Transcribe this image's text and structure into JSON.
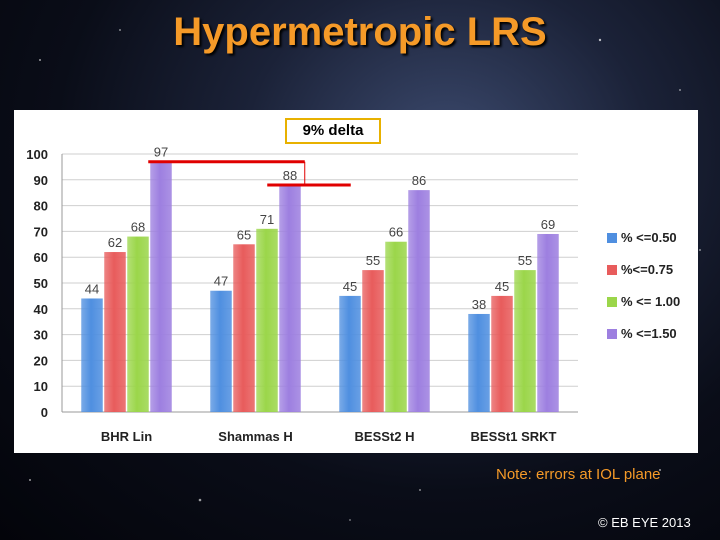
{
  "slide": {
    "title": "Hypermetropic LRS",
    "delta_label": "9% delta",
    "note": "Note: errors at IOL plane",
    "copyright": "© EB EYE 2013"
  },
  "colors": {
    "title": "#f59a28",
    "series": [
      "#4f8fe0",
      "#e85c5c",
      "#9bd64a",
      "#9d7fe0"
    ],
    "marker": "#e00000"
  },
  "chart_data": {
    "type": "bar",
    "categories": [
      "BHR Lin",
      "Shammas H",
      "BESSt2 H",
      "BESSt1 SRKT"
    ],
    "series": [
      {
        "name": "% <=0.50",
        "values": [
          44,
          47,
          45,
          38
        ]
      },
      {
        "name": "%<=0.75",
        "values": [
          62,
          65,
          55,
          45
        ]
      },
      {
        "name": "% <= 1.00",
        "values": [
          68,
          71,
          66,
          55
        ]
      },
      {
        "name": "% <=1.50",
        "values": [
          97,
          88,
          86,
          69
        ]
      }
    ],
    "ylim": [
      0,
      100
    ],
    "yticks": [
      0,
      10,
      20,
      30,
      40,
      50,
      60,
      70,
      80,
      90,
      100
    ],
    "grid": true,
    "legend_position": "right",
    "annotation": {
      "label": "9% delta",
      "from_value": 97,
      "to_value": 88
    }
  }
}
